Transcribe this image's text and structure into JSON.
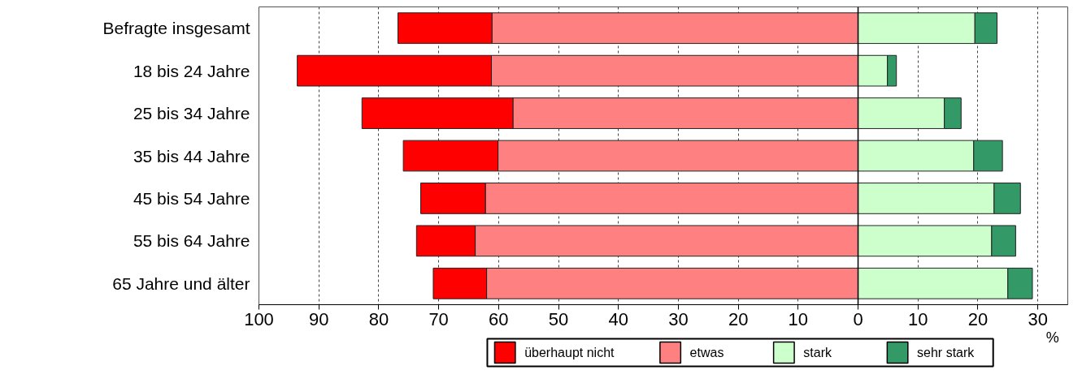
{
  "chart_data": {
    "type": "bar",
    "orientation": "horizontal",
    "stacked": true,
    "categories": [
      "Befragte insgesamt",
      "18 bis 24 Jahre",
      "25 bis 34 Jahre",
      "35 bis 44 Jahre",
      "45 bis 54 Jahre",
      "55 bis 64 Jahre",
      "65 Jahre und älter"
    ],
    "series": [
      {
        "name": "etwas",
        "color": "#ff8080",
        "values": [
          -61.1,
          -61.2,
          -57.6,
          -60.1,
          -62.2,
          -63.9,
          -62.0
        ]
      },
      {
        "name": "überhaupt nicht",
        "color": "#ff0000",
        "values": [
          -15.7,
          -32.4,
          -25.2,
          -15.8,
          -10.8,
          -9.8,
          -8.9
        ]
      },
      {
        "name": "stark",
        "color": "#ccffcc",
        "values": [
          19.5,
          4.9,
          14.4,
          19.3,
          22.7,
          22.3,
          25.0
        ]
      },
      {
        "name": "sehr stark",
        "color": "#339966",
        "values": [
          3.7,
          1.5,
          2.8,
          4.8,
          4.4,
          4.0,
          4.1
        ]
      }
    ],
    "xlabel": "%",
    "xlim": [
      -100,
      35
    ],
    "xticks": [
      {
        "value": -100,
        "label": "100"
      },
      {
        "value": -90,
        "label": "90"
      },
      {
        "value": -80,
        "label": "80"
      },
      {
        "value": -70,
        "label": "70"
      },
      {
        "value": -60,
        "label": "60"
      },
      {
        "value": -50,
        "label": "50"
      },
      {
        "value": -40,
        "label": "40"
      },
      {
        "value": -30,
        "label": "30"
      },
      {
        "value": -20,
        "label": "20"
      },
      {
        "value": -10,
        "label": "10"
      },
      0,
      10,
      20,
      30
    ],
    "grid": "x",
    "legend": "bottom"
  }
}
